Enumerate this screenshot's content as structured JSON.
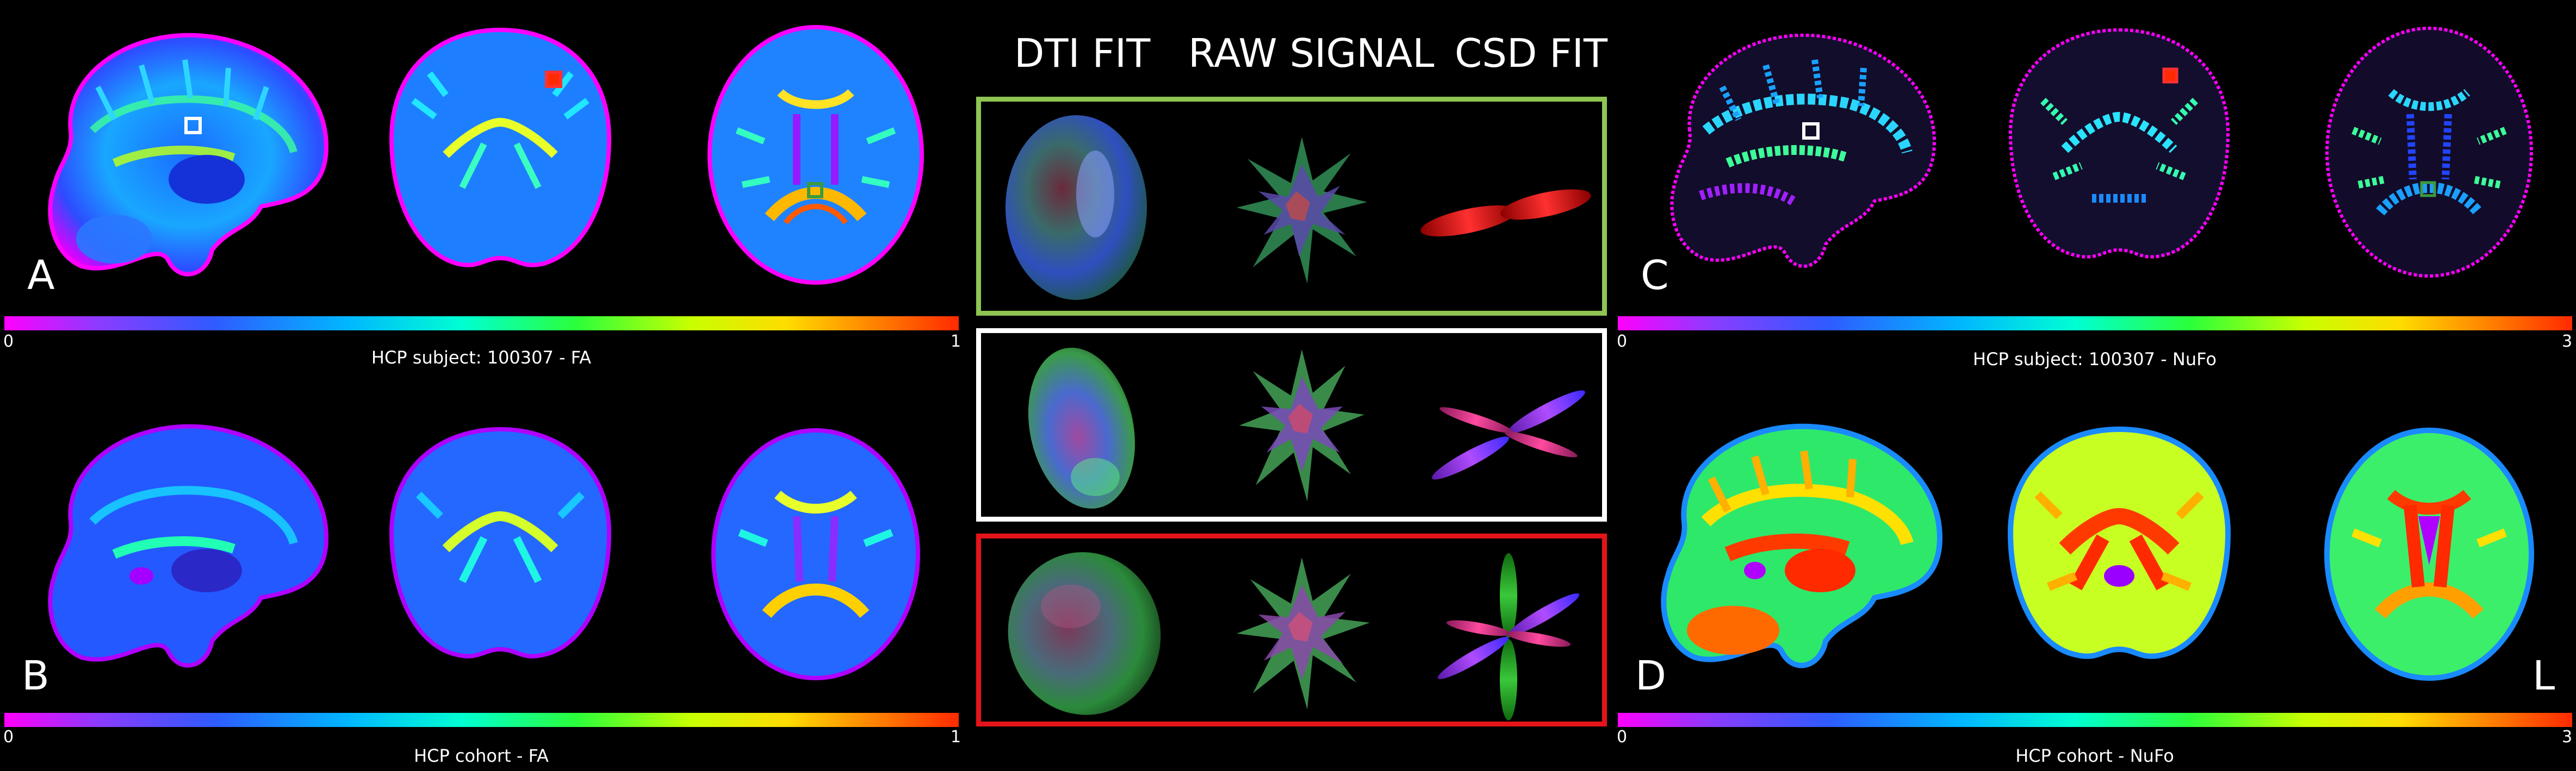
{
  "panel_labels": {
    "a": "A",
    "b": "B",
    "c": "C",
    "d": "D",
    "l": "L"
  },
  "column_titles": {
    "dti": "DTI FIT",
    "raw": "RAW SIGNAL",
    "csd": "CSD FIT"
  },
  "captions": {
    "top_left": "HCP subject: 100307 - FA",
    "bottom_left": "HCP cohort - FA",
    "top_right": "HCP subject: 100307 - NuFo",
    "bottom_right": "HCP cohort - NuFo"
  },
  "colorbars": {
    "fa_min": "0",
    "fa_max": "1",
    "nufo_min": "0",
    "nufo_max": "3"
  },
  "box_colors": {
    "green": "#8fc552",
    "white": "#ffffff",
    "red": "#e4141a"
  },
  "colormap": [
    "#ff00ff",
    "#2f5bff",
    "#00ffd2",
    "#2bff3a",
    "#ffdc00",
    "#ff2a00"
  ]
}
